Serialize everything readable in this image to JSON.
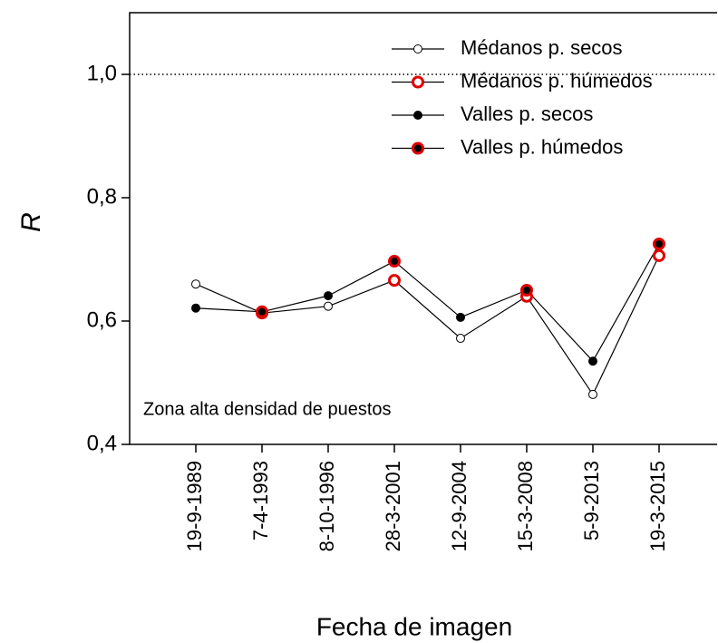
{
  "chart_data": {
    "type": "line",
    "xlabel": "Fecha de imagen",
    "ylabel": "R",
    "annotation": "Zona alta densidad de puestos",
    "categories": [
      "19-9-1989",
      "7-4-1993",
      "8-10-1996",
      "28-3-2001",
      "12-9-2004",
      "15-3-2008",
      "5-9-2013",
      "19-3-2015"
    ],
    "series": [
      {
        "name": "Médanos p. secos",
        "color": "#ffffff",
        "edgecolor": "#000000",
        "values": [
          0.66,
          null,
          0.624,
          null,
          0.572,
          null,
          0.481,
          null
        ]
      },
      {
        "name": "Médanos p. húmedos",
        "color": "#ffffff",
        "edgecolor": "#e00000",
        "values": [
          null,
          0.613,
          null,
          0.666,
          null,
          0.64,
          null,
          0.706
        ]
      },
      {
        "name": "Valles p. secos",
        "color": "#000000",
        "edgecolor": "#000000",
        "values": [
          0.621,
          null,
          0.641,
          null,
          0.606,
          null,
          0.535,
          null
        ]
      },
      {
        "name": "Valles p. húmedos",
        "color": "#000000",
        "edgecolor": "#e00000",
        "values": [
          null,
          0.615,
          null,
          0.697,
          null,
          0.65,
          null,
          0.725
        ]
      }
    ],
    "connect": [
      [
        0,
        1
      ],
      [
        2,
        3
      ]
    ],
    "hline": 1,
    "ylim": [
      0.4,
      1.1
    ],
    "yticks": [
      {
        "value": 0.4,
        "label": "0,4"
      },
      {
        "value": 0.6,
        "label": "0,6"
      },
      {
        "value": 0.8,
        "label": "0,8"
      },
      {
        "value": 1.0,
        "label": "1,0"
      }
    ],
    "legend": "upper right"
  }
}
